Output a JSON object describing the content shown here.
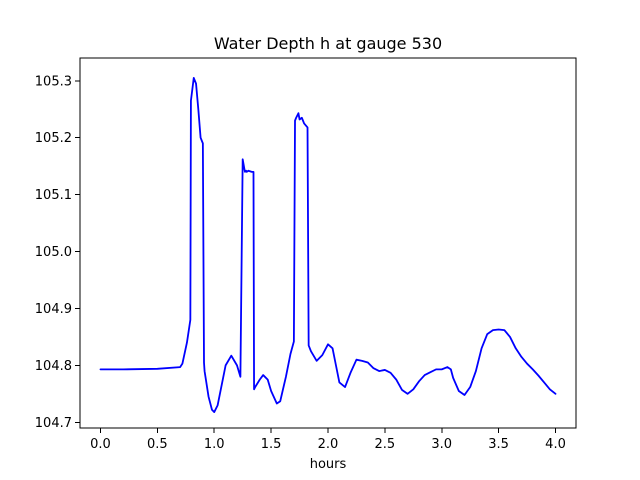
{
  "chart_data": {
    "type": "line",
    "title": "Water Depth h at gauge 530",
    "xlabel": "hours",
    "ylabel": "",
    "xlim": [
      -0.18,
      4.18
    ],
    "ylim": [
      104.69,
      105.34
    ],
    "x_ticks": [
      0.0,
      0.5,
      1.0,
      1.5,
      2.0,
      2.5,
      3.0,
      3.5,
      4.0
    ],
    "x_tick_labels": [
      "0.0",
      "0.5",
      "1.0",
      "1.5",
      "2.0",
      "2.5",
      "3.0",
      "3.5",
      "4.0"
    ],
    "y_ticks": [
      104.7,
      104.8,
      104.9,
      105.0,
      105.1,
      105.2,
      105.3
    ],
    "y_tick_labels": [
      "104.7",
      "104.8",
      "104.9",
      "105.0",
      "105.1",
      "105.2",
      "105.3"
    ],
    "grid": false,
    "legend": "none",
    "series": [
      {
        "color": "#0000ff",
        "x": [
          0.0,
          0.2,
          0.5,
          0.7,
          0.72,
          0.76,
          0.79,
          0.795,
          0.82,
          0.84,
          0.86,
          0.88,
          0.9,
          0.91,
          0.915,
          0.95,
          0.98,
          1.0,
          1.03,
          1.07,
          1.1,
          1.15,
          1.2,
          1.23,
          1.25,
          1.265,
          1.27,
          1.28,
          1.285,
          1.3,
          1.33,
          1.345,
          1.35,
          1.36,
          1.4,
          1.43,
          1.47,
          1.5,
          1.55,
          1.58,
          1.63,
          1.67,
          1.7,
          1.71,
          1.72,
          1.74,
          1.75,
          1.77,
          1.79,
          1.82,
          1.83,
          1.85,
          1.9,
          1.95,
          2.0,
          2.04,
          2.07,
          2.1,
          2.15,
          2.2,
          2.25,
          2.3,
          2.35,
          2.4,
          2.45,
          2.5,
          2.55,
          2.6,
          2.65,
          2.7,
          2.75,
          2.8,
          2.85,
          2.9,
          2.95,
          3.0,
          3.05,
          3.08,
          3.1,
          3.15,
          3.2,
          3.25,
          3.3,
          3.35,
          3.4,
          3.45,
          3.5,
          3.55,
          3.6,
          3.65,
          3.7,
          3.75,
          3.8,
          3.85,
          3.9,
          3.95,
          4.0
        ],
        "y": [
          104.793,
          104.793,
          104.794,
          104.797,
          104.803,
          104.84,
          104.88,
          105.265,
          105.305,
          105.295,
          105.25,
          105.2,
          105.19,
          104.805,
          104.79,
          104.745,
          104.722,
          104.718,
          104.73,
          104.77,
          104.8,
          104.817,
          104.8,
          104.78,
          105.162,
          105.145,
          105.14,
          105.142,
          105.14,
          105.142,
          105.14,
          105.14,
          104.758,
          104.762,
          104.775,
          104.783,
          104.775,
          104.755,
          104.733,
          104.737,
          104.78,
          104.82,
          104.842,
          105.23,
          105.235,
          105.243,
          105.232,
          105.235,
          105.225,
          105.218,
          104.835,
          104.825,
          104.808,
          104.818,
          104.837,
          104.83,
          104.8,
          104.77,
          104.762,
          104.788,
          104.81,
          104.808,
          104.805,
          104.795,
          104.79,
          104.792,
          104.787,
          104.775,
          104.757,
          104.75,
          104.758,
          104.772,
          104.783,
          104.788,
          104.793,
          104.793,
          104.797,
          104.793,
          104.778,
          104.755,
          104.748,
          104.762,
          104.79,
          104.83,
          104.855,
          104.862,
          104.863,
          104.862,
          104.85,
          104.83,
          104.815,
          104.803,
          104.793,
          104.782,
          104.77,
          104.758,
          104.75
        ]
      }
    ]
  }
}
